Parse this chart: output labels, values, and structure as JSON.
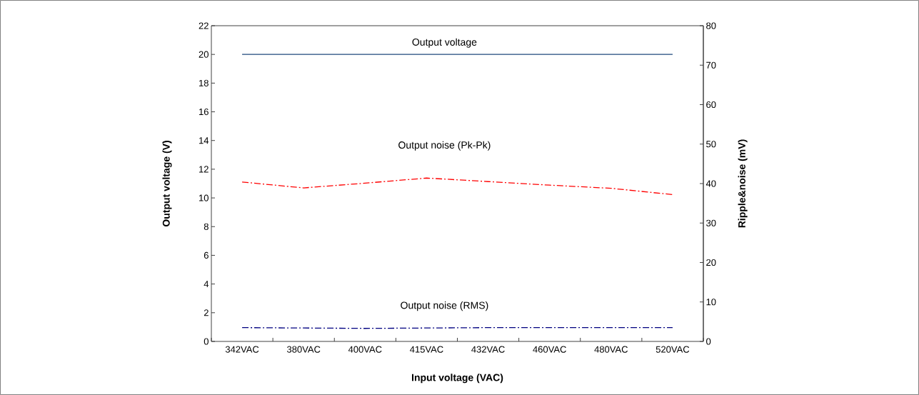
{
  "chart_data": {
    "type": "line",
    "xlabel": "Input voltage (VAC)",
    "ylabel": "Output voltage (V)",
    "y2label": "Ripple&noise (mV)",
    "categories": [
      "342VAC",
      "380VAC",
      "400VAC",
      "415VAC",
      "432VAC",
      "460VAC",
      "480VAC",
      "520VAC"
    ],
    "series": [
      {
        "name": "Output voltage",
        "color": "#1f497d",
        "line_style": "solid",
        "values": [
          20,
          20,
          20,
          20,
          20,
          20,
          20,
          20
        ]
      },
      {
        "name": "Output noise (Pk-Pk)",
        "color": "#ff0000",
        "line_style": "dashed",
        "axis": "y2",
        "values": [
          40.4,
          38.9,
          40.1,
          41.4,
          40.5,
          39.6,
          38.8,
          37.2
        ]
      },
      {
        "name": "Output noise (RMS)",
        "color": "#000080",
        "line_style": "dashed",
        "axis": "y2",
        "values": [
          3.5,
          3.4,
          3.3,
          3.4,
          3.5,
          3.5,
          3.5,
          3.5
        ]
      }
    ],
    "ylim": [
      0,
      22
    ],
    "yticks": [
      0,
      2,
      4,
      6,
      8,
      10,
      12,
      14,
      16,
      18,
      20,
      22
    ],
    "y2lim": [
      0,
      80
    ],
    "y2ticks": [
      0,
      10,
      20,
      30,
      40,
      50,
      60,
      70,
      80
    ],
    "grid": false,
    "marker": "none"
  }
}
